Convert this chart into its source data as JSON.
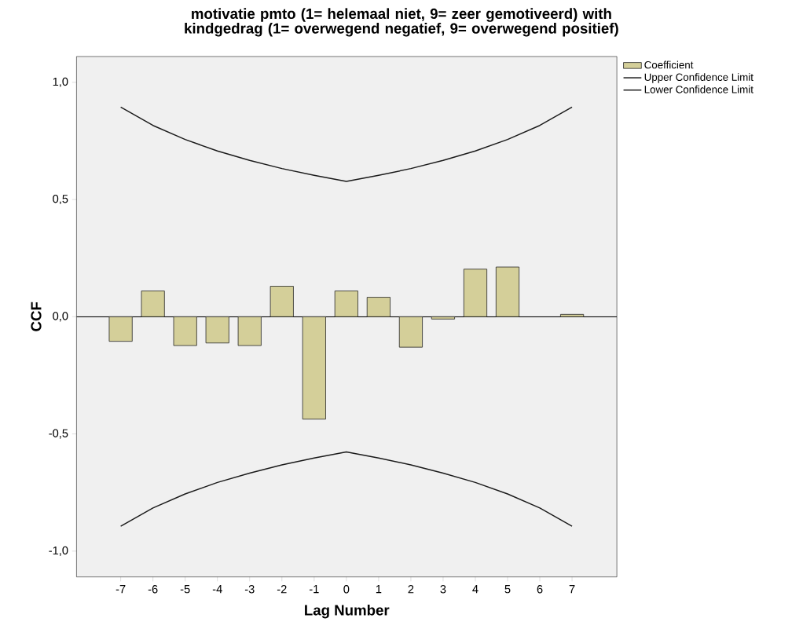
{
  "chart_data": {
    "type": "bar",
    "title": "motivatie pmto (1= helemaal niet, 9= zeer gemotiveerd) with kindgedrag (1= overwegend negatief, 9= overwegend positief)",
    "xlabel": "Lag Number",
    "ylabel": "CCF",
    "categories": [
      "-7",
      "-6",
      "-5",
      "-4",
      "-3",
      "-2",
      "-1",
      "0",
      "1",
      "2",
      "3",
      "4",
      "5",
      "6",
      "7"
    ],
    "ylim": [
      -1.11,
      1.11
    ],
    "yticks": [
      {
        "value": -1,
        "label": "-1,0"
      },
      {
        "value": -0.5,
        "label": "-0,5"
      },
      {
        "value": 0,
        "label": "0,0"
      },
      {
        "value": 0.5,
        "label": "0,5"
      },
      {
        "value": 1,
        "label": "1,0"
      }
    ],
    "legend": "top right",
    "series": [
      {
        "name": "Coefficient",
        "color": "#d4cf99",
        "values": [
          -0.105,
          0.11,
          -0.123,
          -0.112,
          -0.123,
          0.13,
          -0.437,
          0.11,
          0.083,
          -0.13,
          -0.01,
          0.203,
          0.212,
          null,
          0.01
        ]
      },
      {
        "name": "Upper Confidence Limit",
        "type": "line",
        "color": "#1a1a1a",
        "values": [
          0.894,
          0.816,
          0.756,
          0.707,
          0.667,
          0.632,
          0.603,
          0.577,
          0.603,
          0.632,
          0.667,
          0.707,
          0.756,
          0.816,
          0.894
        ]
      },
      {
        "name": "Lower Confidence Limit",
        "type": "line",
        "color": "#1a1a1a",
        "values": [
          -0.894,
          -0.816,
          -0.756,
          -0.707,
          -0.667,
          -0.632,
          -0.603,
          -0.577,
          -0.603,
          -0.632,
          -0.667,
          -0.707,
          -0.756,
          -0.816,
          -0.894
        ]
      }
    ]
  }
}
